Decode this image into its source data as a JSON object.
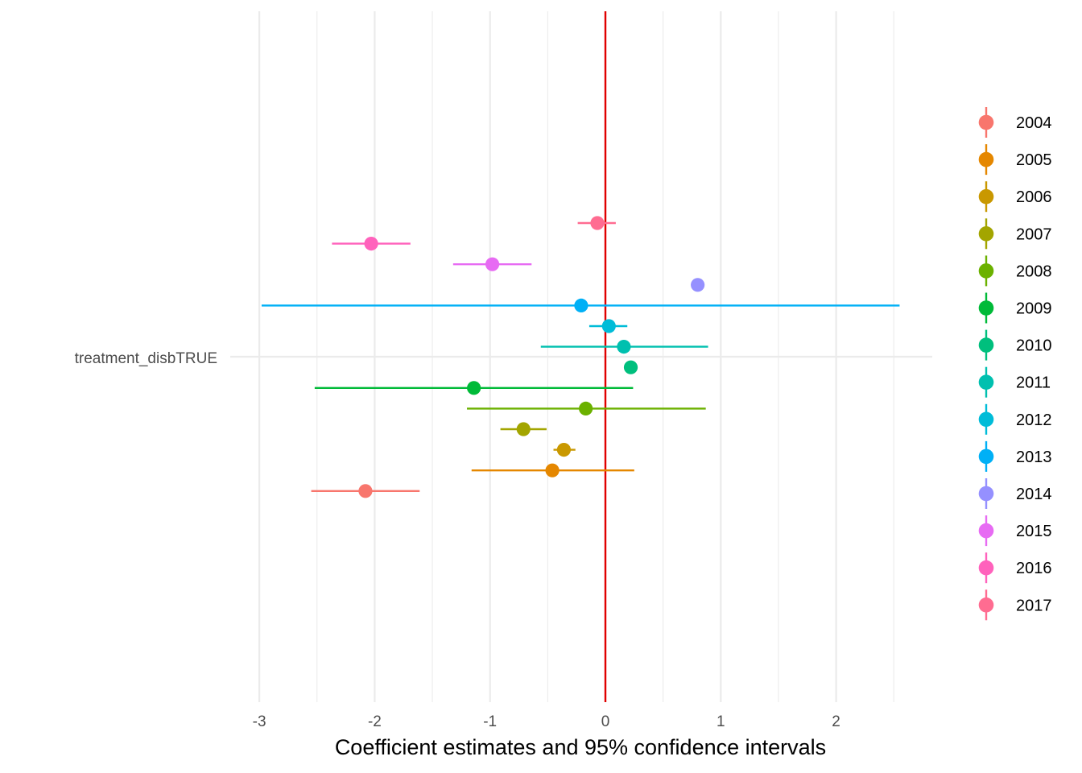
{
  "chart_data": {
    "type": "scatter",
    "subtype": "coefficient-plot",
    "title": "",
    "xlabel": "Coefficient estimates and 95% confidence intervals",
    "ylabel": "",
    "xlim": [
      -3.0,
      2.8
    ],
    "x_ticks": [
      -3,
      -2,
      -1,
      0,
      1,
      2
    ],
    "x_tick_labels": [
      "-3",
      "-2",
      "-1",
      "0",
      "1",
      "2"
    ],
    "y_categories": [
      "treatment_disbTRUE"
    ],
    "grid": true,
    "reference_line": {
      "x": 0,
      "color": "#E00000"
    },
    "legend": {
      "position": "right"
    },
    "series": [
      {
        "name": "2004",
        "color": "#F8766D",
        "estimate": -2.08,
        "ci": [
          -2.55,
          -1.61
        ]
      },
      {
        "name": "2005",
        "color": "#E58700",
        "estimate": -0.46,
        "ci": [
          -1.16,
          0.25
        ]
      },
      {
        "name": "2006",
        "color": "#C99800",
        "estimate": -0.36,
        "ci": [
          -0.45,
          -0.26
        ]
      },
      {
        "name": "2007",
        "color": "#A3A500",
        "estimate": -0.71,
        "ci": [
          -0.91,
          -0.51
        ]
      },
      {
        "name": "2008",
        "color": "#6BB100",
        "estimate": -0.17,
        "ci": [
          -1.2,
          0.87
        ]
      },
      {
        "name": "2009",
        "color": "#00BA38",
        "estimate": -1.14,
        "ci": [
          -2.52,
          0.24
        ]
      },
      {
        "name": "2010",
        "color": "#00BF7D",
        "estimate": 0.22,
        "ci": [
          0.22,
          0.22
        ]
      },
      {
        "name": "2011",
        "color": "#00C0AF",
        "estimate": 0.16,
        "ci": [
          -0.56,
          0.89
        ]
      },
      {
        "name": "2012",
        "color": "#00BCD8",
        "estimate": 0.03,
        "ci": [
          -0.14,
          0.19
        ]
      },
      {
        "name": "2013",
        "color": "#00B0F6",
        "estimate": -0.21,
        "ci": [
          -2.98,
          2.55
        ]
      },
      {
        "name": "2014",
        "color": "#9590FF",
        "estimate": 0.8,
        "ci": [
          0.8,
          0.8
        ]
      },
      {
        "name": "2015",
        "color": "#E76BF3",
        "estimate": -0.98,
        "ci": [
          -1.32,
          -0.64
        ]
      },
      {
        "name": "2016",
        "color": "#FF62BC",
        "estimate": -2.03,
        "ci": [
          -2.37,
          -1.69
        ]
      },
      {
        "name": "2017",
        "color": "#FF6C91",
        "estimate": -0.07,
        "ci": [
          -0.24,
          0.09
        ]
      }
    ]
  }
}
